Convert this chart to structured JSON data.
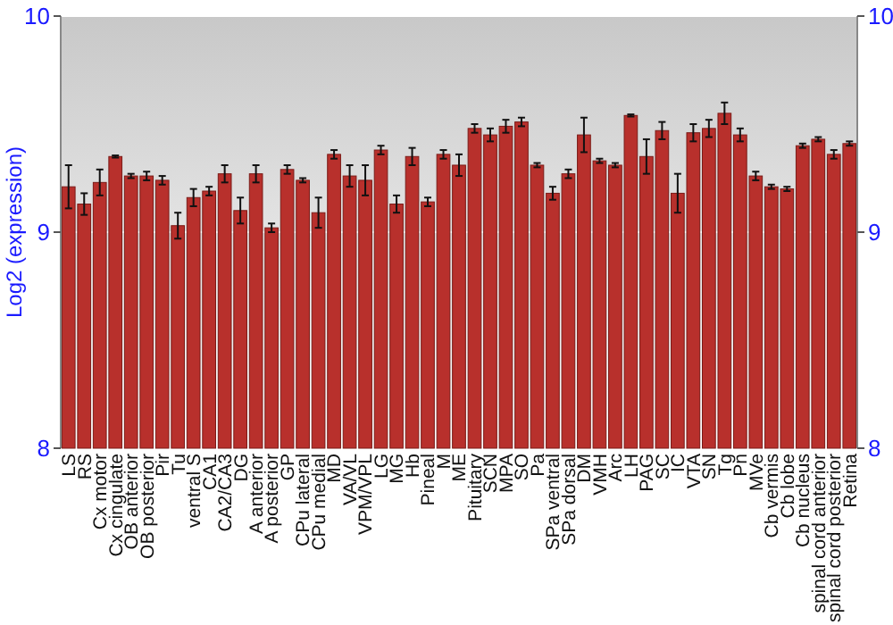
{
  "chart_data": {
    "type": "bar",
    "ylabel": "Log2 (expression)",
    "categories": [
      "LS",
      "RS",
      "Cx motor",
      "Cx cingulate",
      "OB anterior",
      "OB posterior",
      "Pir",
      "Tu",
      "ventral S",
      "CA1",
      "CA2/CA3",
      "DG",
      "A anterior",
      "A posterior",
      "GP",
      "CPu lateral",
      "CPu medial",
      "MD",
      "VA/VL",
      "VPM/VPL",
      "LG",
      "MG",
      "Hb",
      "Pineal",
      "M",
      "ME",
      "Pituitary",
      "SCN",
      "MPA",
      "SO",
      "Pa",
      "SPa ventral",
      "SPa dorsal",
      "DM",
      "VMH",
      "Arc",
      "LH",
      "PAG",
      "SC",
      "IC",
      "VTA",
      "SN",
      "Tg",
      "Pn",
      "MVe",
      "Cb vermis",
      "Cb lobe",
      "Cb nucleus",
      "spinal cord anterior",
      "spinal cord posterior",
      "Retina"
    ],
    "values": [
      9.21,
      9.13,
      9.23,
      9.35,
      9.26,
      9.26,
      9.24,
      9.03,
      9.16,
      9.19,
      9.27,
      9.1,
      9.27,
      9.02,
      9.29,
      9.24,
      9.09,
      9.36,
      9.26,
      9.24,
      9.38,
      9.13,
      9.35,
      9.14,
      9.36,
      9.31,
      9.48,
      9.45,
      9.49,
      9.51,
      9.31,
      9.18,
      9.27,
      9.45,
      9.33,
      9.31,
      9.54,
      9.35,
      9.47,
      9.18,
      9.46,
      9.48,
      9.55,
      9.45,
      9.26,
      9.21,
      9.2,
      9.4,
      9.43,
      9.36,
      9.41
    ],
    "errors": [
      0.1,
      0.05,
      0.06,
      0.005,
      0.01,
      0.02,
      0.02,
      0.06,
      0.04,
      0.02,
      0.04,
      0.06,
      0.04,
      0.02,
      0.02,
      0.01,
      0.07,
      0.02,
      0.05,
      0.07,
      0.02,
      0.04,
      0.04,
      0.02,
      0.02,
      0.05,
      0.02,
      0.03,
      0.03,
      0.02,
      0.01,
      0.03,
      0.02,
      0.08,
      0.01,
      0.01,
      0.005,
      0.08,
      0.04,
      0.09,
      0.04,
      0.04,
      0.05,
      0.03,
      0.02,
      0.01,
      0.01,
      0.01,
      0.01,
      0.02,
      0.01
    ],
    "color": "#b8302c",
    "ylim": [
      8,
      10
    ],
    "yticks": [
      8,
      9,
      10
    ],
    "y2lim": [
      8,
      10
    ],
    "y2ticks": [
      8,
      9,
      10
    ],
    "grid": "y"
  }
}
